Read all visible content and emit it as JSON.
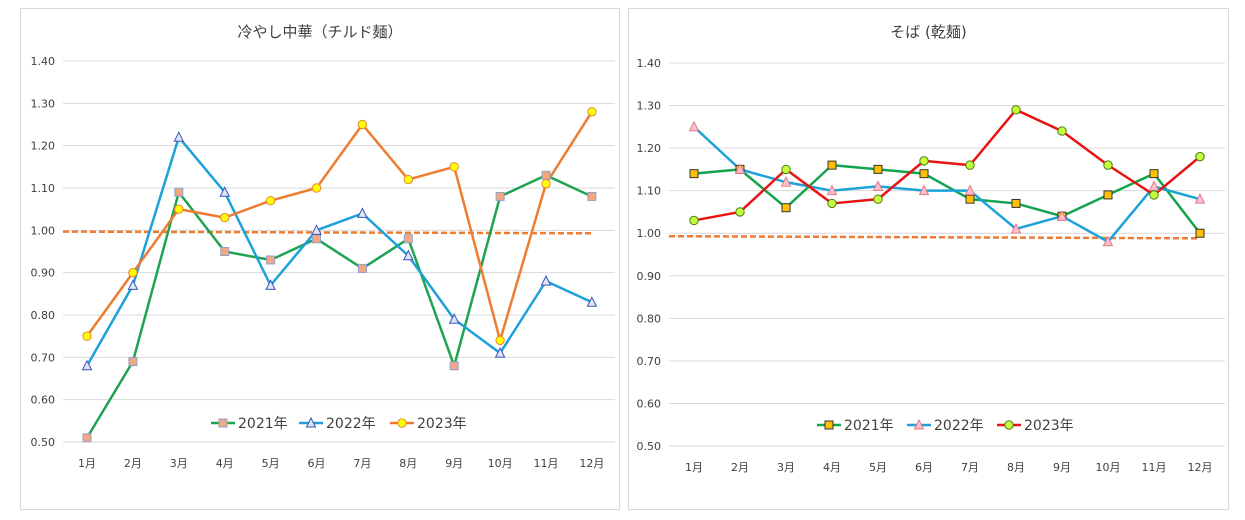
{
  "charts": [
    {
      "title": "冷やし中華（チルド麺）",
      "type": "line",
      "categories": [
        "1月",
        "2月",
        "3月",
        "4月",
        "5月",
        "6月",
        "7月",
        "8月",
        "9月",
        "10月",
        "11月",
        "12月"
      ],
      "yticks": [
        "0.50",
        "0.60",
        "0.70",
        "0.80",
        "0.90",
        "1.00",
        "1.10",
        "1.20",
        "1.30",
        "1.40"
      ],
      "ylim": [
        0.5,
        1.4
      ],
      "grid": true,
      "legend": "bottom-inside",
      "series": [
        {
          "name": "2021年",
          "color": "#1fa350",
          "marker": "square",
          "marker_fill": "#f4a582",
          "marker_stroke": "#8fa3c9",
          "values": [
            0.51,
            0.69,
            1.09,
            0.95,
            0.93,
            0.98,
            0.91,
            0.98,
            0.68,
            1.08,
            1.13,
            1.08
          ]
        },
        {
          "name": "2022年",
          "color": "#1ca2d8",
          "marker": "triangle",
          "marker_fill": "#dde6f7",
          "marker_stroke": "#3f52b5",
          "values": [
            0.68,
            0.87,
            1.22,
            1.09,
            0.87,
            1.0,
            1.04,
            0.94,
            0.79,
            0.71,
            0.88,
            0.83
          ]
        },
        {
          "name": "2023年",
          "color": "#ed7d31",
          "marker": "circle",
          "marker_fill": "#ffff00",
          "marker_stroke": "#e8872e",
          "values": [
            0.75,
            0.9,
            1.05,
            1.03,
            1.07,
            1.1,
            1.25,
            1.12,
            1.15,
            0.74,
            1.11,
            1.28
          ]
        }
      ],
      "trendline": {
        "color": "#ed7d31",
        "from": 0.997,
        "to": 0.993
      }
    },
    {
      "title": "そば (乾麺)",
      "type": "line",
      "categories": [
        "1月",
        "2月",
        "3月",
        "4月",
        "5月",
        "6月",
        "7月",
        "8月",
        "9月",
        "10月",
        "11月",
        "12月"
      ],
      "yticks": [
        "0.50",
        "0.60",
        "0.70",
        "0.80",
        "0.90",
        "1.00",
        "1.10",
        "1.20",
        "1.30",
        "1.40"
      ],
      "ylim": [
        0.5,
        1.4
      ],
      "grid": true,
      "legend": "bottom-inside",
      "series": [
        {
          "name": "2021年",
          "color": "#12a44e",
          "marker": "square",
          "marker_fill": "#ffc000",
          "marker_stroke": "#333333",
          "values": [
            1.14,
            1.15,
            1.06,
            1.16,
            1.15,
            1.14,
            1.08,
            1.07,
            1.04,
            1.09,
            1.14,
            1.0
          ]
        },
        {
          "name": "2022年",
          "color": "#1ca2d8",
          "marker": "triangle",
          "marker_fill": "#ffc0cb",
          "marker_stroke": "#e07a8a",
          "values": [
            1.25,
            1.15,
            1.12,
            1.1,
            1.11,
            1.1,
            1.1,
            1.01,
            1.04,
            0.98,
            1.11,
            1.08
          ]
        },
        {
          "name": "2023年",
          "color": "#e81414",
          "marker": "circle",
          "marker_fill": "#c5ff3a",
          "marker_stroke": "#4d7a1a",
          "values": [
            1.03,
            1.05,
            1.15,
            1.07,
            1.08,
            1.17,
            1.16,
            1.29,
            1.24,
            1.16,
            1.09,
            1.18
          ]
        }
      ],
      "trendline": {
        "color": "#ed7d31",
        "from": 0.993,
        "to": 0.988
      }
    }
  ]
}
